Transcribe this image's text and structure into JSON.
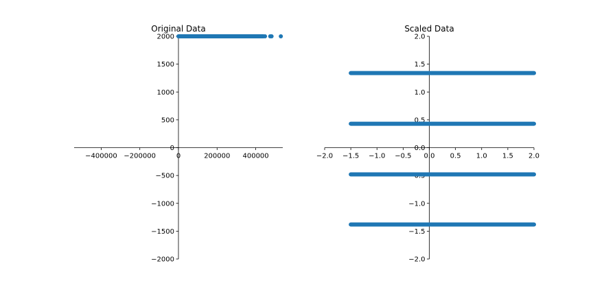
{
  "colors": {
    "series": "#1f77b4",
    "axis": "#000000"
  },
  "chart_data": [
    {
      "type": "scatter",
      "title": "Original Data",
      "xlabel": "",
      "ylabel": "",
      "xlim": [
        -540000,
        540000
      ],
      "ylim": [
        -2000,
        2000
      ],
      "spines": "centered",
      "grid": false,
      "x_ticks": [
        -400000,
        -200000,
        0,
        200000,
        400000
      ],
      "x_tick_labels": [
        "−400000",
        "−200000",
        "0",
        "200000",
        "400000"
      ],
      "y_ticks": [
        -2000,
        -1500,
        -1000,
        -500,
        0,
        500,
        1000,
        1500,
        2000
      ],
      "y_tick_labels": [
        "−2000",
        "−1500",
        "−1000",
        "−500",
        "0",
        "500",
        "1000",
        "1500",
        "2000"
      ],
      "series": [
        {
          "style": "dense band of points",
          "x_range": [
            0,
            440000
          ],
          "y": 2000
        },
        {
          "style": "scattered points",
          "points": [
            [
              448000,
              2000
            ],
            [
              475000,
              2000
            ],
            [
              482000,
              2000
            ],
            [
              530000,
              2000
            ]
          ]
        }
      ]
    },
    {
      "type": "scatter",
      "title": "Scaled Data",
      "xlabel": "",
      "ylabel": "",
      "xlim": [
        -2.0,
        2.0
      ],
      "ylim": [
        -2.0,
        2.0
      ],
      "spines": "centered",
      "grid": false,
      "x_ticks": [
        -2.0,
        -1.5,
        -1.0,
        -0.5,
        0.0,
        0.5,
        1.0,
        1.5,
        2.0
      ],
      "x_tick_labels": [
        "−2.0",
        "−1.5",
        "−1.0",
        "−0.5",
        "0.0",
        "0.5",
        "1.0",
        "1.5",
        "2.0"
      ],
      "y_ticks": [
        -2.0,
        -1.5,
        -1.0,
        -0.5,
        0.0,
        0.5,
        1.0,
        1.5,
        2.0
      ],
      "y_tick_labels": [
        "−2.0",
        "−1.5",
        "−1.0",
        "−0.5",
        "0.0",
        "0.5",
        "1.0",
        "1.5",
        "2.0"
      ],
      "series": [
        {
          "style": "dense band of points",
          "x_range": [
            -1.5,
            2.0
          ],
          "y": 1.34
        },
        {
          "style": "dense band of points",
          "x_range": [
            -1.5,
            2.0
          ],
          "y": 0.43
        },
        {
          "style": "dense band of points",
          "x_range": [
            -1.5,
            2.0
          ],
          "y": -0.48
        },
        {
          "style": "dense band of points",
          "x_range": [
            -1.5,
            2.0
          ],
          "y": -1.38
        }
      ]
    }
  ]
}
